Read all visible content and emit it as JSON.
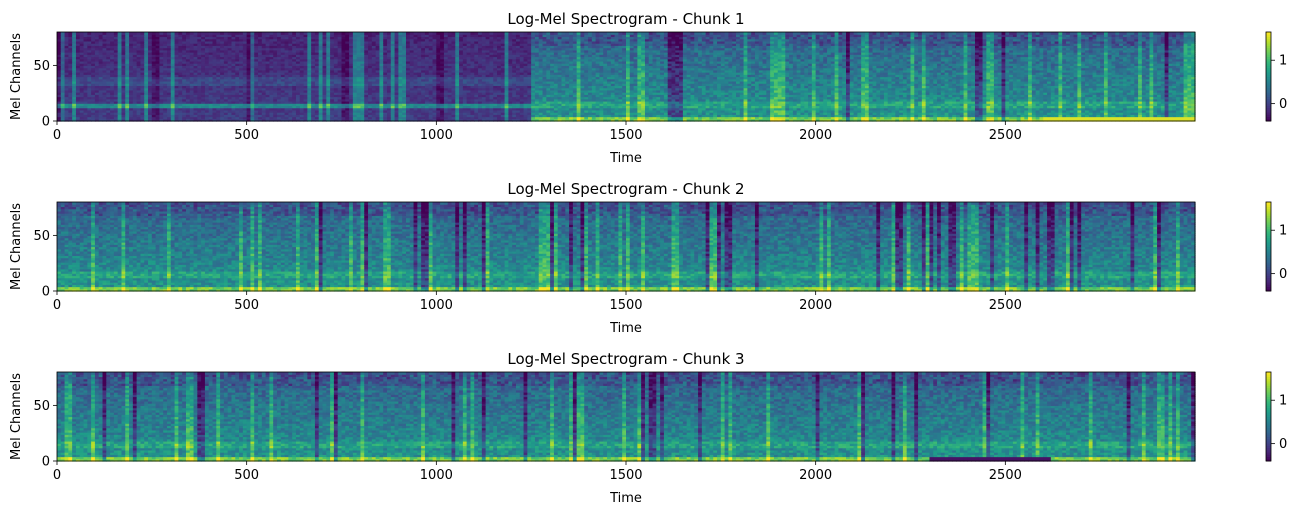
{
  "chart_data": [
    {
      "type": "heatmap",
      "title": "Log-Mel Spectrogram - Chunk 1",
      "xlabel": "Time",
      "ylabel": "Mel Channels",
      "xlim": [
        0,
        3000
      ],
      "ylim": [
        0,
        80
      ],
      "xticks": [
        0,
        500,
        1000,
        1500,
        2000,
        2500
      ],
      "yticks": [
        0,
        50
      ],
      "colorbar": {
        "range": [
          -0.4,
          1.65
        ],
        "ticks": [
          0,
          1
        ],
        "colormap": "viridis"
      },
      "segments": [
        {
          "x": [
            0,
            1250
          ],
          "description_level": "dark, sparse with bright harmonic band near channel 15"
        },
        {
          "x": [
            1250,
            3000
          ],
          "description_level": "dense, brighter low channels"
        }
      ]
    },
    {
      "type": "heatmap",
      "title": "Log-Mel Spectrogram - Chunk 2",
      "xlabel": "Time",
      "ylabel": "Mel Channels",
      "xlim": [
        0,
        3000
      ],
      "ylim": [
        0,
        80
      ],
      "xticks": [
        0,
        500,
        1000,
        1500,
        2000,
        2500
      ],
      "yticks": [
        0,
        50
      ],
      "colorbar": {
        "range": [
          -0.4,
          1.65
        ],
        "ticks": [
          0,
          1
        ],
        "colormap": "viridis"
      }
    },
    {
      "type": "heatmap",
      "title": "Log-Mel Spectrogram - Chunk 3",
      "xlabel": "Time",
      "ylabel": "Mel Channels",
      "xlim": [
        0,
        3000
      ],
      "ylim": [
        0,
        80
      ],
      "xticks": [
        0,
        500,
        1000,
        1500,
        2000,
        2500
      ],
      "yticks": [
        0,
        50
      ],
      "colorbar": {
        "range": [
          -0.4,
          1.65
        ],
        "ticks": [
          0,
          1
        ],
        "colormap": "viridis"
      }
    }
  ]
}
